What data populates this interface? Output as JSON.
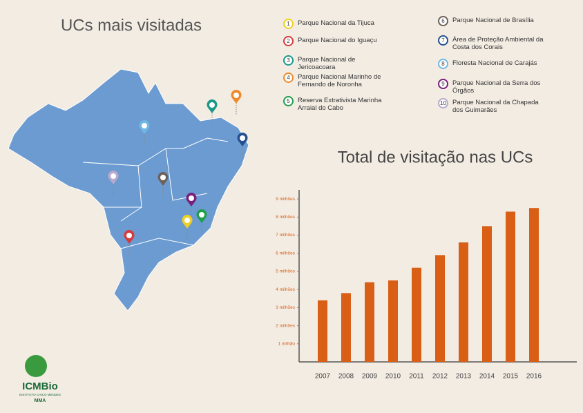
{
  "title": "UCs mais visitadas",
  "ucs": [
    {
      "number": 1,
      "name": "Parque Nacional da Tijuca",
      "color": "#f0cf1f"
    },
    {
      "number": 2,
      "name": "Parque Nacional do Iguaçu",
      "color": "#d8393a"
    },
    {
      "number": 3,
      "name": "Parque Nacional de Jericoacoara",
      "color": "#1b9889"
    },
    {
      "number": 4,
      "name": "Parque Nacional Marinho de Fernando de Noronha",
      "color": "#ee8a2b"
    },
    {
      "number": 5,
      "name": "Reserva Extrativista Marinha Arraial do Cabo",
      "color": "#1f9f4a"
    },
    {
      "number": 6,
      "name": "Parque Nacional de Brasília",
      "color": "#6d615b"
    },
    {
      "number": 7,
      "name": "Área de Proteção Ambiental da Costa dos Corais",
      "color": "#25508f"
    },
    {
      "number": 8,
      "name": "Floresta Nacional de Carajás",
      "color": "#70b8e3"
    },
    {
      "number": 9,
      "name": "Parque Nacional da Serra dos Órgãos",
      "color": "#7a1f7c"
    },
    {
      "number": 10,
      "name": "Parque Nacional da Chapada dos Guimarães",
      "color": "#b8a9cc"
    }
  ],
  "logo": {
    "name": "ICMBio",
    "subtitle": "INSTITUTO CHICO MENDES",
    "ministry": "MMA"
  },
  "chart_data": {
    "type": "bar",
    "title": "Total de visitação nas UCs",
    "categories": [
      "2007",
      "2008",
      "2009",
      "2010",
      "2011",
      "2012",
      "2013",
      "2014",
      "2015",
      "2016"
    ],
    "values": [
      3.4,
      3.8,
      4.4,
      4.5,
      5.2,
      5.9,
      6.6,
      7.5,
      8.3,
      8.5
    ],
    "color": "#d95f16",
    "ylim": [
      0,
      9.5
    ],
    "yticks": [
      {
        "value": 1,
        "label": "1 milhão"
      },
      {
        "value": 2,
        "label": "2 milhões"
      },
      {
        "value": 3,
        "label": "3 milhões"
      },
      {
        "value": 4,
        "label": "4 milhões"
      },
      {
        "value": 5,
        "label": "5 milhões"
      },
      {
        "value": 6,
        "label": "6 milhões"
      },
      {
        "value": 7,
        "label": "7 milhões"
      },
      {
        "value": 8,
        "label": "8 milhões"
      },
      {
        "value": 9,
        "label": "9 milhões"
      }
    ]
  }
}
